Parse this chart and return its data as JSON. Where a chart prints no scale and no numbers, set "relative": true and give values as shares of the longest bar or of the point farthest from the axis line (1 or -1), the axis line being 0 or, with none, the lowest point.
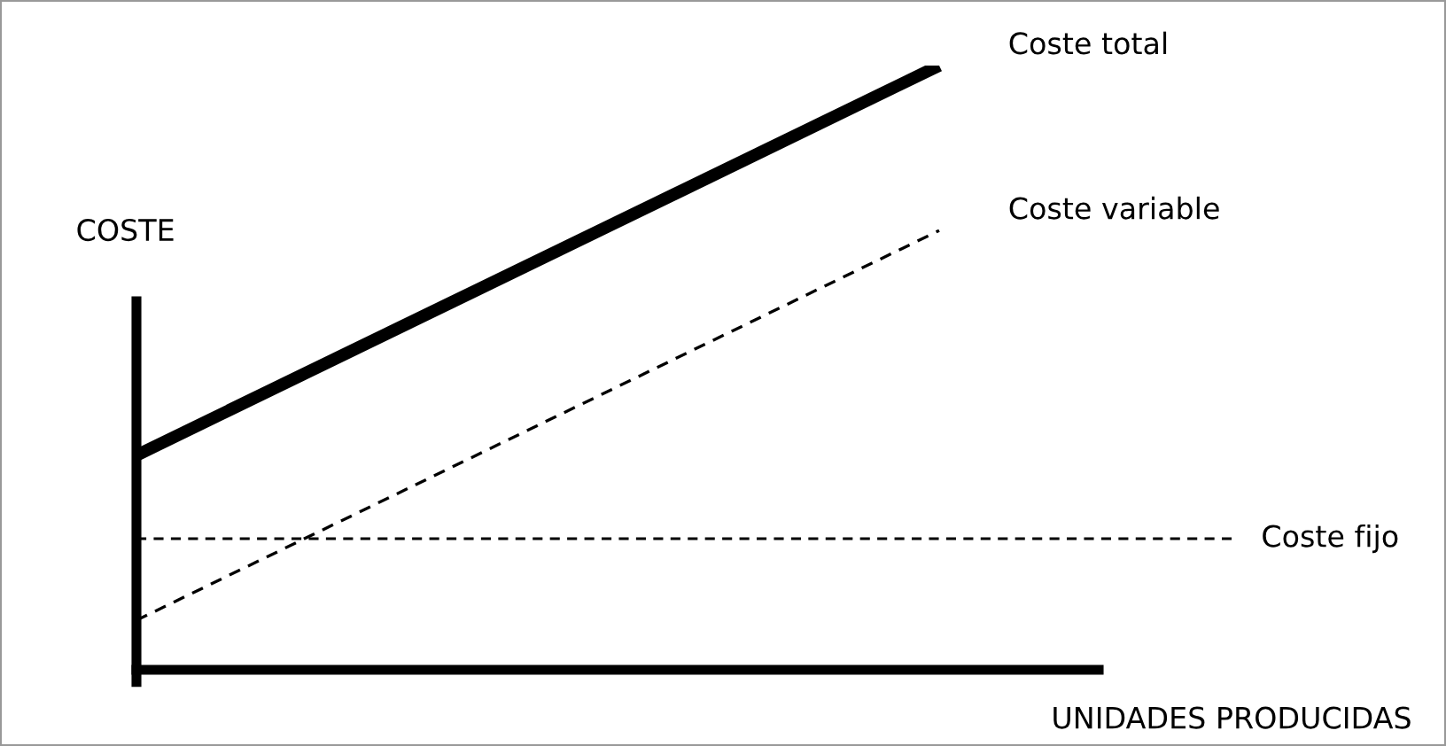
{
  "chart_data": {
    "type": "line",
    "relative": true,
    "xlabel": "UNIDADES PRODUCIDAS",
    "ylabel": "COSTE",
    "categories": [
      null,
      null
    ],
    "series": [
      {
        "name": "Coste total",
        "color": "#000000",
        "values": [
          0.355,
          1
        ],
        "line_style": "solid"
      },
      {
        "name": "Coste variable",
        "color": "#000000",
        "values": [
          0.082,
          0.727
        ],
        "line_style": "dashed"
      }
    ],
    "ref_lines": [
      {
        "axis": "y",
        "value": 0.217,
        "label": "Coste fijo",
        "color": "#000000",
        "line_style": "dashed"
      }
    ],
    "legend": false,
    "grid": false,
    "marker": "none"
  }
}
